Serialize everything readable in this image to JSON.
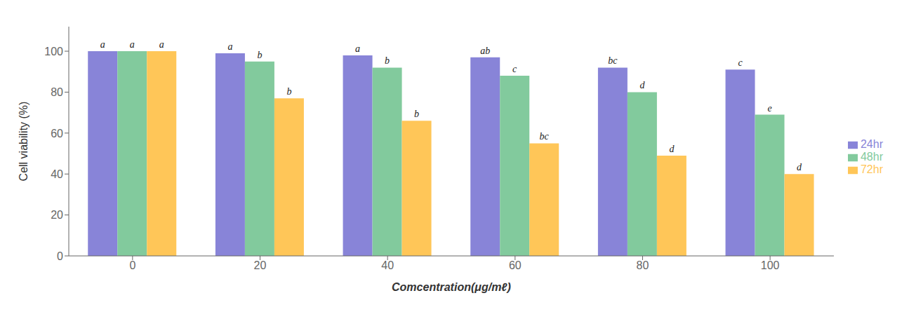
{
  "chart_data": {
    "type": "bar",
    "categories": [
      "0",
      "20",
      "40",
      "60",
      "80",
      "100"
    ],
    "series": [
      {
        "name": "24hr",
        "color": "#8884d8",
        "values": [
          100,
          99,
          98,
          97,
          92,
          91
        ],
        "annotations": [
          "a",
          "a",
          "a",
          "ab",
          "bc",
          "c"
        ]
      },
      {
        "name": "48hr",
        "color": "#82ca9d",
        "values": [
          100,
          95,
          92,
          88,
          80,
          69
        ],
        "annotations": [
          "a",
          "b",
          "b",
          "c",
          "d",
          "e"
        ]
      },
      {
        "name": "72hr",
        "color": "#ffc658",
        "values": [
          100,
          77,
          66,
          55,
          49,
          40
        ],
        "annotations": [
          "a",
          "b",
          "b",
          "bc",
          "d",
          "d"
        ]
      }
    ],
    "xlabel": "Comcentration(μg/mℓ)",
    "ylabel": "Cell viability (%)",
    "ylim": [
      0,
      112
    ],
    "yticks": [
      0,
      20,
      40,
      60,
      80,
      100
    ],
    "grid": false,
    "legend": "right"
  }
}
